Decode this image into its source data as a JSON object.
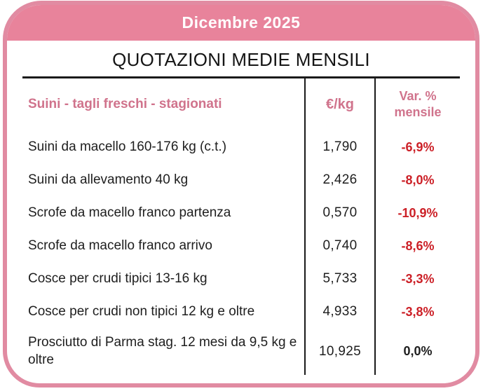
{
  "colors": {
    "banner_pink": "#e8839b",
    "border_pink": "#e18ba2",
    "heading_pink": "#d0738c",
    "negative_red": "#cc2027",
    "text_black": "#1e1e1e",
    "line_black": "#1a1a1a"
  },
  "chart_data": {
    "type": "table",
    "period": "Dicembre 2025",
    "title": "QUOTAZIONI MEDIE MENSILI",
    "columns": {
      "category": "Suini - tagli freschi - stagionati",
      "price": "€/kg",
      "variation": "Var. % mensile"
    },
    "rows": [
      {
        "label": "Suini da macello 160-176 kg (c.t.)",
        "price": "1,790",
        "variation": "-6,9%",
        "trend": "negative"
      },
      {
        "label": "Suini da allevamento 40 kg",
        "price": "2,426",
        "variation": "-8,0%",
        "trend": "negative"
      },
      {
        "label": "Scrofe da macello franco partenza",
        "price": "0,570",
        "variation": "-10,9%",
        "trend": "negative"
      },
      {
        "label": "Scrofe da macello franco arrivo",
        "price": "0,740",
        "variation": "-8,6%",
        "trend": "negative"
      },
      {
        "label": "Cosce per crudi tipici 13-16 kg",
        "price": "5,733",
        "variation": "-3,3%",
        "trend": "negative"
      },
      {
        "label": "Cosce per crudi non tipici 12 kg e oltre",
        "price": "4,933",
        "variation": "-3,8%",
        "trend": "negative"
      },
      {
        "label": "Prosciutto di Parma stag. 12 mesi da 9,5 kg e oltre",
        "price": "10,925",
        "variation": "0,0%",
        "trend": "neutral"
      }
    ]
  }
}
